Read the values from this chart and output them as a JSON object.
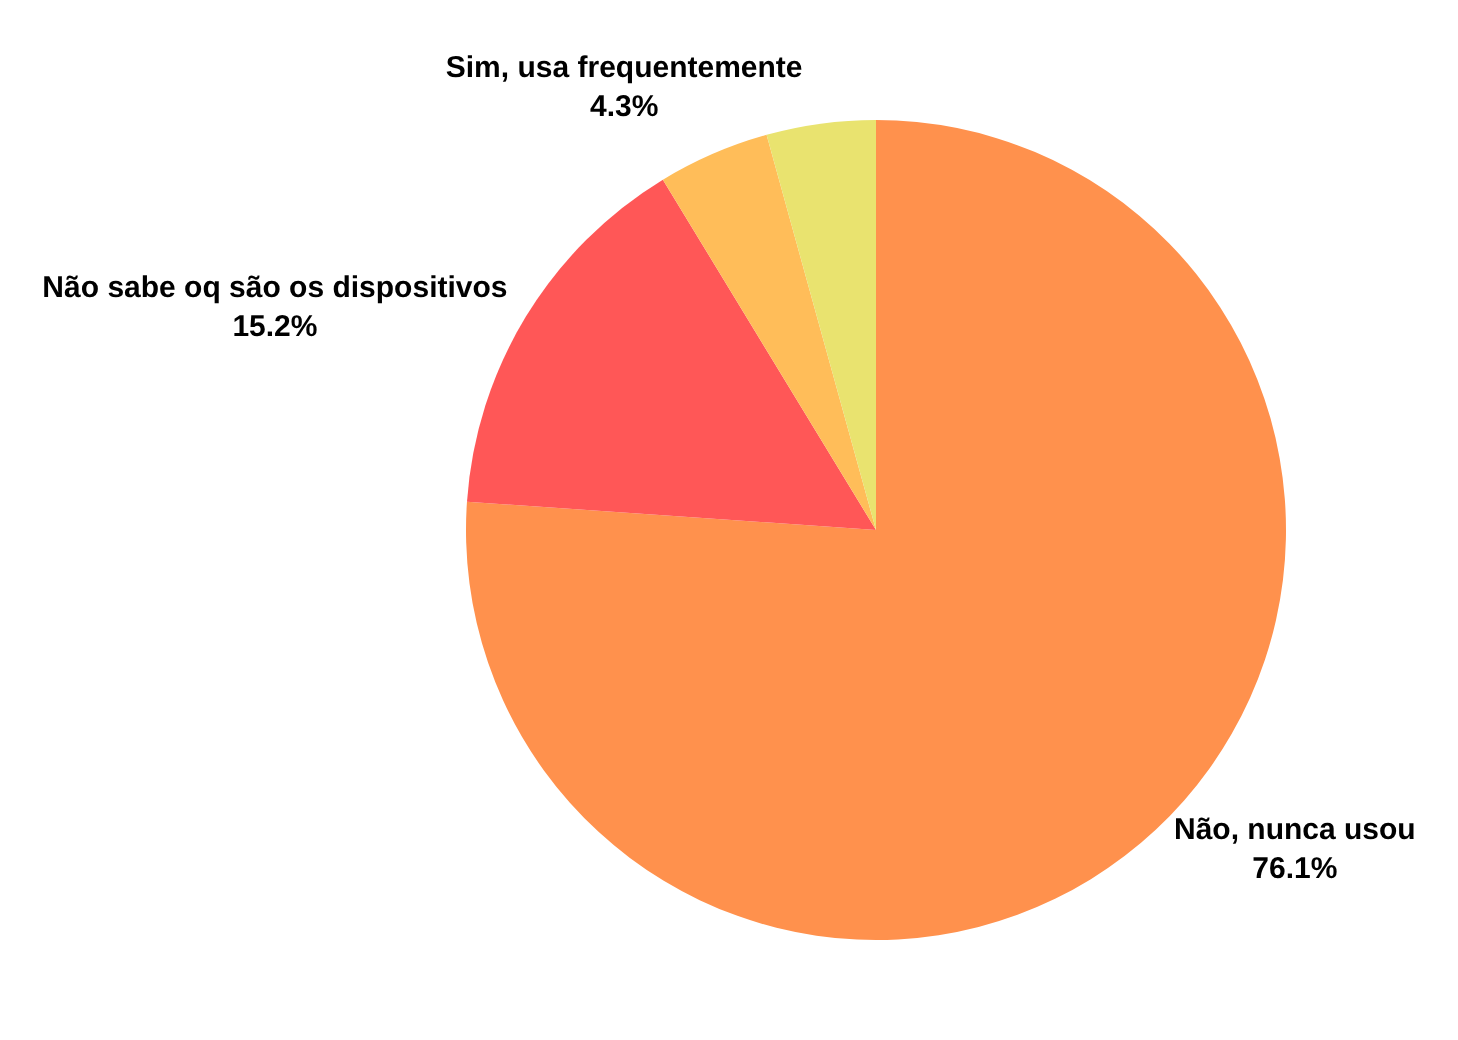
{
  "chart_data": {
    "type": "pie",
    "categories": [
      "Não, nunca usou",
      "Não sabe oq são os dispositivos",
      null,
      "Sim, usa frequentemente"
    ],
    "values": [
      76.1,
      15.2,
      4.4,
      4.3
    ],
    "value_labels": [
      "76.1%",
      "15.2%",
      null,
      "4.3%"
    ],
    "colors": [
      "#ff914d",
      "#ff5757",
      "#ffbd59",
      "#e9e36f"
    ],
    "legend": false
  }
}
